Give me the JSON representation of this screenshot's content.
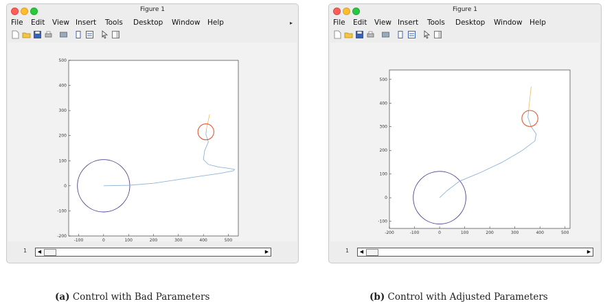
{
  "figures": [
    {
      "window_title": "Figure 1",
      "menu": [
        "File",
        "Edit",
        "View",
        "Insert",
        "Tools",
        "Desktop",
        "Window",
        "Help"
      ],
      "figure_number": "1",
      "caption_label": "(a)",
      "caption_text": "Control with Bad Parameters",
      "chart_data": {
        "type": "line",
        "xlim": [
          -140,
          540
        ],
        "ylim": [
          -200,
          500
        ],
        "x_ticks": [
          "-100",
          "0",
          "100",
          "200",
          "300",
          "400",
          "500"
        ],
        "y_ticks": [
          "-200",
          "-100",
          "0",
          "100",
          "200",
          "300",
          "400",
          "500"
        ],
        "grid": false,
        "large_circle": {
          "center": [
            0,
            0
          ],
          "radius": 105,
          "color": "#4b3a8c"
        },
        "small_circle": {
          "center": [
            410,
            215
          ],
          "radius": 32,
          "color": "#e4572e"
        },
        "trajectory": {
          "color": "#8fb3d6",
          "points": [
            [
              0,
              0
            ],
            [
              100,
              2
            ],
            [
              200,
              10
            ],
            [
              300,
              25
            ],
            [
              400,
              40
            ],
            [
              470,
              50
            ],
            [
              520,
              60
            ],
            [
              525,
              65
            ],
            [
              500,
              70
            ],
            [
              460,
              75
            ],
            [
              420,
              85
            ],
            [
              400,
              105
            ],
            [
              405,
              140
            ],
            [
              420,
              175
            ],
            [
              410,
              205
            ],
            [
              412,
              225
            ]
          ]
        },
        "heading": {
          "color": "#f0b85a",
          "points": [
            [
              412,
              225
            ],
            [
              425,
              285
            ]
          ]
        }
      }
    },
    {
      "window_title": "Figure 1",
      "menu": [
        "File",
        "Edit",
        "View",
        "Insert",
        "Tools",
        "Desktop",
        "Window",
        "Help"
      ],
      "figure_number": "1",
      "caption_label": "(b)",
      "caption_text": "Control with Adjusted Parameters",
      "chart_data": {
        "type": "line",
        "xlim": [
          -200,
          520
        ],
        "ylim": [
          -130,
          540
        ],
        "x_ticks": [
          "-200",
          "-100",
          "0",
          "100",
          "200",
          "300",
          "400",
          "500"
        ],
        "y_ticks": [
          "-100",
          "0",
          "100",
          "200",
          "300",
          "400",
          "500"
        ],
        "grid": false,
        "large_circle": {
          "center": [
            0,
            0
          ],
          "radius": 105,
          "color": "#4b3a8c"
        },
        "small_circle": {
          "center": [
            360,
            335
          ],
          "radius": 32,
          "color": "#e4572e"
        },
        "trajectory": {
          "color": "#8fb3d6",
          "points": [
            [
              0,
              0
            ],
            [
              30,
              30
            ],
            [
              80,
              70
            ],
            [
              160,
              105
            ],
            [
              250,
              150
            ],
            [
              330,
              200
            ],
            [
              380,
              240
            ],
            [
              385,
              270
            ],
            [
              365,
              300
            ],
            [
              352,
              340
            ],
            [
              355,
              370
            ]
          ]
        },
        "heading": {
          "color": "#f0b85a",
          "points": [
            [
              355,
              370
            ],
            [
              365,
              470
            ]
          ]
        }
      }
    }
  ]
}
